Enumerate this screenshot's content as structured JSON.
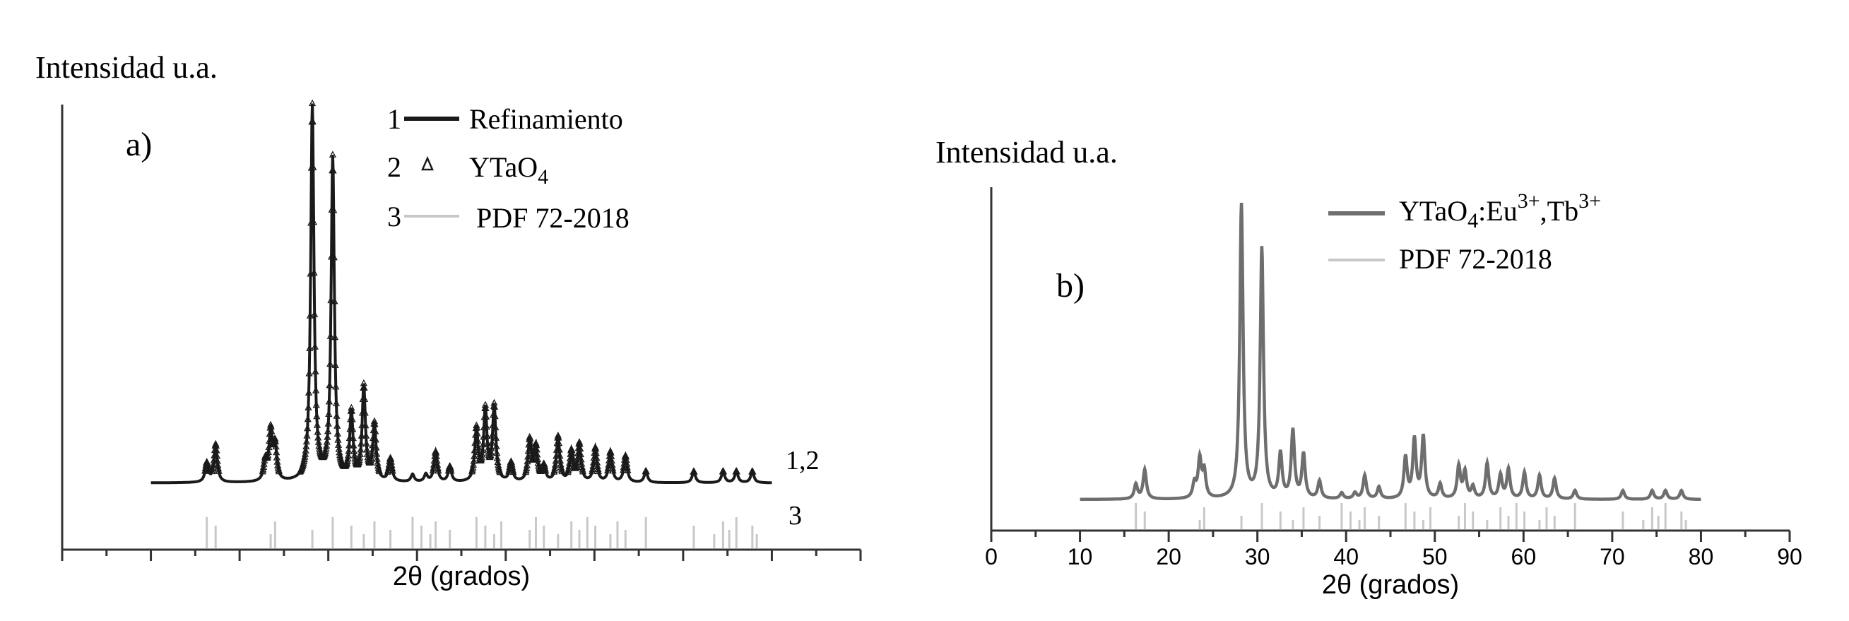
{
  "colors": {
    "panel_a_line": "#1a1a1a",
    "panel_b_line": "#6e6e6e",
    "reference_bars": "#c8c8c8",
    "axis": "#333333"
  },
  "chart_data": [
    {
      "panel": "a)",
      "type": "line",
      "ylabel": "Intensidad u.a.",
      "xlabel": "2θ (grados)",
      "xlim": [
        0,
        90
      ],
      "xticks_labeled": false,
      "legend": [
        {
          "index": "1",
          "label": "Refinamiento",
          "style": "line"
        },
        {
          "index": "2",
          "label": "YTaO4",
          "style": "triangle-markers"
        },
        {
          "index": "3",
          "label": "PDF 72-2018",
          "style": "light-line"
        }
      ],
      "curve_labels": {
        "pattern": "1,2",
        "reference": "3"
      },
      "series": [
        {
          "name": "Refinamiento / YTaO4",
          "peaks": [
            {
              "x": 16.3,
              "h": 0.05
            },
            {
              "x": 17.3,
              "h": 0.1
            },
            {
              "x": 22.9,
              "h": 0.05
            },
            {
              "x": 23.5,
              "h": 0.13
            },
            {
              "x": 24.0,
              "h": 0.09
            },
            {
              "x": 28.2,
              "h": 1.0
            },
            {
              "x": 30.5,
              "h": 0.86
            },
            {
              "x": 32.6,
              "h": 0.18
            },
            {
              "x": 34.0,
              "h": 0.25
            },
            {
              "x": 35.2,
              "h": 0.15
            },
            {
              "x": 37.0,
              "h": 0.06
            },
            {
              "x": 39.5,
              "h": 0.02
            },
            {
              "x": 41.0,
              "h": 0.02
            },
            {
              "x": 42.1,
              "h": 0.08
            },
            {
              "x": 43.7,
              "h": 0.04
            },
            {
              "x": 46.7,
              "h": 0.14
            },
            {
              "x": 47.7,
              "h": 0.19
            },
            {
              "x": 48.7,
              "h": 0.2
            },
            {
              "x": 50.6,
              "h": 0.05
            },
            {
              "x": 52.7,
              "h": 0.11
            },
            {
              "x": 53.4,
              "h": 0.09
            },
            {
              "x": 54.3,
              "h": 0.04
            },
            {
              "x": 55.9,
              "h": 0.12
            },
            {
              "x": 57.4,
              "h": 0.08
            },
            {
              "x": 58.3,
              "h": 0.1
            },
            {
              "x": 60.1,
              "h": 0.09
            },
            {
              "x": 61.8,
              "h": 0.08
            },
            {
              "x": 63.5,
              "h": 0.07
            },
            {
              "x": 65.8,
              "h": 0.03
            },
            {
              "x": 71.2,
              "h": 0.03
            },
            {
              "x": 74.5,
              "h": 0.03
            },
            {
              "x": 76.0,
              "h": 0.03
            },
            {
              "x": 77.8,
              "h": 0.03
            }
          ]
        }
      ],
      "reference_lines": [
        16.3,
        17.3,
        23.5,
        24.0,
        28.2,
        30.5,
        32.6,
        34.0,
        35.2,
        37.0,
        39.5,
        40.5,
        41.5,
        42.1,
        43.7,
        46.7,
        47.7,
        48.7,
        49.5,
        52.7,
        53.4,
        54.3,
        55.9,
        57.4,
        58.3,
        59.2,
        60.1,
        61.8,
        62.6,
        63.5,
        65.8,
        71.2,
        73.5,
        74.5,
        75.2,
        76.0,
        77.8,
        78.3
      ]
    },
    {
      "panel": "b)",
      "type": "line",
      "ylabel": "Intensidad u.a.",
      "xlabel": "2θ (grados)",
      "xlim": [
        0,
        90
      ],
      "xticks": [
        "0",
        "10",
        "20",
        "30",
        "40",
        "50",
        "60",
        "70",
        "80",
        "90"
      ],
      "legend": [
        {
          "label": "YTaO4:Eu3+,Tb3+",
          "style": "line"
        },
        {
          "label": "PDF 72-2018",
          "style": "light-line"
        }
      ],
      "series": [
        {
          "name": "YTaO4:Eu3+,Tb3+",
          "peaks": [
            {
              "x": 16.3,
              "h": 0.05
            },
            {
              "x": 17.3,
              "h": 0.1
            },
            {
              "x": 22.9,
              "h": 0.05
            },
            {
              "x": 23.5,
              "h": 0.13
            },
            {
              "x": 24.0,
              "h": 0.09
            },
            {
              "x": 28.2,
              "h": 1.0
            },
            {
              "x": 30.5,
              "h": 0.85
            },
            {
              "x": 32.6,
              "h": 0.15
            },
            {
              "x": 34.0,
              "h": 0.23
            },
            {
              "x": 35.2,
              "h": 0.15
            },
            {
              "x": 37.0,
              "h": 0.06
            },
            {
              "x": 39.5,
              "h": 0.02
            },
            {
              "x": 41.0,
              "h": 0.02
            },
            {
              "x": 42.1,
              "h": 0.08
            },
            {
              "x": 43.7,
              "h": 0.04
            },
            {
              "x": 46.7,
              "h": 0.14
            },
            {
              "x": 47.7,
              "h": 0.2
            },
            {
              "x": 48.7,
              "h": 0.21
            },
            {
              "x": 50.6,
              "h": 0.05
            },
            {
              "x": 52.7,
              "h": 0.11
            },
            {
              "x": 53.4,
              "h": 0.09
            },
            {
              "x": 54.3,
              "h": 0.04
            },
            {
              "x": 55.9,
              "h": 0.12
            },
            {
              "x": 57.4,
              "h": 0.08
            },
            {
              "x": 58.3,
              "h": 0.1
            },
            {
              "x": 60.1,
              "h": 0.09
            },
            {
              "x": 61.8,
              "h": 0.08
            },
            {
              "x": 63.5,
              "h": 0.07
            },
            {
              "x": 65.8,
              "h": 0.03
            },
            {
              "x": 71.2,
              "h": 0.03
            },
            {
              "x": 74.5,
              "h": 0.03
            },
            {
              "x": 76.0,
              "h": 0.03
            },
            {
              "x": 77.8,
              "h": 0.03
            }
          ]
        }
      ],
      "reference_lines": [
        16.3,
        17.3,
        23.5,
        24.0,
        28.2,
        30.5,
        32.6,
        34.0,
        35.2,
        37.0,
        39.5,
        40.5,
        41.5,
        42.1,
        43.7,
        46.7,
        47.7,
        48.7,
        49.5,
        52.7,
        53.4,
        54.3,
        55.9,
        57.4,
        58.3,
        59.2,
        60.1,
        61.8,
        62.6,
        63.5,
        65.8,
        71.2,
        73.5,
        74.5,
        75.2,
        76.0,
        77.8,
        78.3
      ]
    }
  ]
}
